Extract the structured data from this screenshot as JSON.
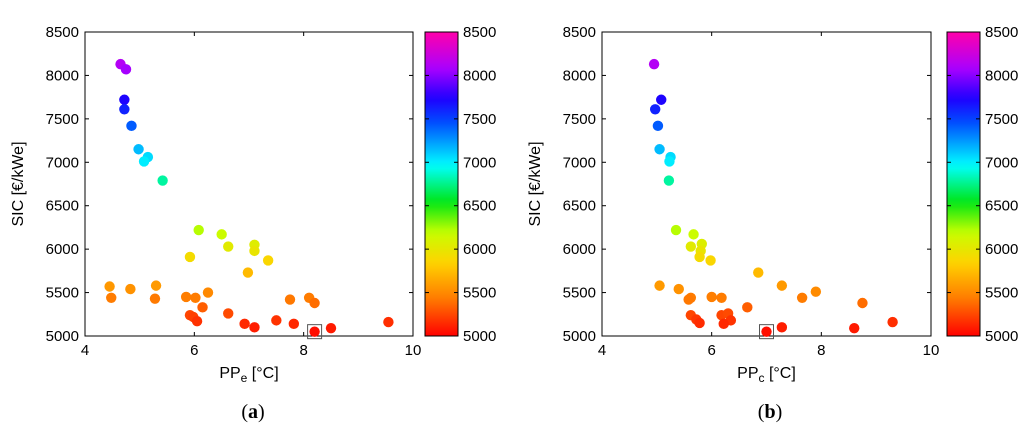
{
  "chart_data": [
    {
      "type": "scatter",
      "panel_label": {
        "open": "(",
        "letter": "a",
        "close": ")"
      },
      "xlabel": {
        "base": "PP",
        "sub": "e",
        "unit": " [°C]"
      },
      "ylabel": "SIC [€/kWe]",
      "xlim": [
        4,
        10
      ],
      "ylim": [
        5000,
        8500
      ],
      "xticks": [
        "4",
        "6",
        "8",
        "10"
      ],
      "yticks": [
        "5000",
        "5500",
        "6000",
        "6500",
        "7000",
        "7500",
        "8000",
        "8500"
      ],
      "color_scale": {
        "min": 5000,
        "max": 8500,
        "ticks": [
          "5000",
          "5500",
          "6000",
          "6500",
          "7000",
          "7500",
          "8000",
          "8500"
        ]
      },
      "highlighted_point": {
        "x": 8.2,
        "y": 5050
      },
      "points": [
        {
          "x": 4.65,
          "y": 8130
        },
        {
          "x": 4.75,
          "y": 8070
        },
        {
          "x": 4.72,
          "y": 7720
        },
        {
          "x": 4.72,
          "y": 7610
        },
        {
          "x": 4.85,
          "y": 7420
        },
        {
          "x": 4.98,
          "y": 7150
        },
        {
          "x": 5.15,
          "y": 7060
        },
        {
          "x": 5.08,
          "y": 7010
        },
        {
          "x": 5.42,
          "y": 6790
        },
        {
          "x": 6.08,
          "y": 6220
        },
        {
          "x": 6.5,
          "y": 6170
        },
        {
          "x": 6.62,
          "y": 6030
        },
        {
          "x": 7.1,
          "y": 6050
        },
        {
          "x": 7.1,
          "y": 5980
        },
        {
          "x": 5.92,
          "y": 5910
        },
        {
          "x": 7.35,
          "y": 5870
        },
        {
          "x": 6.98,
          "y": 5730
        },
        {
          "x": 4.45,
          "y": 5570
        },
        {
          "x": 4.83,
          "y": 5540
        },
        {
          "x": 5.3,
          "y": 5580
        },
        {
          "x": 6.25,
          "y": 5500
        },
        {
          "x": 4.48,
          "y": 5440
        },
        {
          "x": 5.28,
          "y": 5430
        },
        {
          "x": 5.85,
          "y": 5450
        },
        {
          "x": 6.02,
          "y": 5440
        },
        {
          "x": 7.75,
          "y": 5420
        },
        {
          "x": 8.1,
          "y": 5440
        },
        {
          "x": 8.2,
          "y": 5380
        },
        {
          "x": 6.15,
          "y": 5330
        },
        {
          "x": 5.92,
          "y": 5240
        },
        {
          "x": 5.98,
          "y": 5220
        },
        {
          "x": 6.62,
          "y": 5260
        },
        {
          "x": 6.05,
          "y": 5170
        },
        {
          "x": 7.5,
          "y": 5180
        },
        {
          "x": 6.92,
          "y": 5140
        },
        {
          "x": 7.82,
          "y": 5140
        },
        {
          "x": 7.1,
          "y": 5100
        },
        {
          "x": 8.5,
          "y": 5090
        },
        {
          "x": 8.2,
          "y": 5050
        },
        {
          "x": 9.55,
          "y": 5160
        }
      ]
    },
    {
      "type": "scatter",
      "panel_label": {
        "open": "(",
        "letter": "b",
        "close": ")"
      },
      "xlabel": {
        "base": "PP",
        "sub": "c",
        "unit": " [°C]"
      },
      "ylabel": "SIC [€/kWe]",
      "xlim": [
        4,
        10
      ],
      "ylim": [
        5000,
        8500
      ],
      "xticks": [
        "4",
        "6",
        "8",
        "10"
      ],
      "yticks": [
        "5000",
        "5500",
        "6000",
        "6500",
        "7000",
        "7500",
        "8000",
        "8500"
      ],
      "color_scale": {
        "min": 5000,
        "max": 8500,
        "ticks": [
          "5000",
          "5500",
          "6000",
          "6500",
          "7000",
          "7500",
          "8000",
          "8500"
        ]
      },
      "highlighted_point": {
        "x": 7.0,
        "y": 5050
      },
      "points": [
        {
          "x": 4.95,
          "y": 8130
        },
        {
          "x": 5.08,
          "y": 7720
        },
        {
          "x": 4.97,
          "y": 7610
        },
        {
          "x": 5.02,
          "y": 7420
        },
        {
          "x": 5.05,
          "y": 7150
        },
        {
          "x": 5.25,
          "y": 7060
        },
        {
          "x": 5.23,
          "y": 7010
        },
        {
          "x": 5.22,
          "y": 6790
        },
        {
          "x": 5.35,
          "y": 6220
        },
        {
          "x": 5.67,
          "y": 6170
        },
        {
          "x": 5.62,
          "y": 6030
        },
        {
          "x": 5.82,
          "y": 6060
        },
        {
          "x": 5.8,
          "y": 5980
        },
        {
          "x": 5.78,
          "y": 5910
        },
        {
          "x": 5.98,
          "y": 5870
        },
        {
          "x": 6.85,
          "y": 5730
        },
        {
          "x": 5.05,
          "y": 5580
        },
        {
          "x": 5.4,
          "y": 5540
        },
        {
          "x": 7.28,
          "y": 5580
        },
        {
          "x": 7.9,
          "y": 5510
        },
        {
          "x": 5.62,
          "y": 5440
        },
        {
          "x": 5.58,
          "y": 5420
        },
        {
          "x": 6.0,
          "y": 5450
        },
        {
          "x": 6.18,
          "y": 5440
        },
        {
          "x": 7.65,
          "y": 5440
        },
        {
          "x": 8.75,
          "y": 5380
        },
        {
          "x": 6.65,
          "y": 5330
        },
        {
          "x": 5.62,
          "y": 5240
        },
        {
          "x": 5.72,
          "y": 5190
        },
        {
          "x": 5.78,
          "y": 5150
        },
        {
          "x": 6.18,
          "y": 5240
        },
        {
          "x": 6.3,
          "y": 5260
        },
        {
          "x": 6.35,
          "y": 5180
        },
        {
          "x": 6.22,
          "y": 5140
        },
        {
          "x": 7.28,
          "y": 5100
        },
        {
          "x": 8.6,
          "y": 5090
        },
        {
          "x": 9.3,
          "y": 5160
        },
        {
          "x": 7.0,
          "y": 5050
        }
      ]
    }
  ]
}
